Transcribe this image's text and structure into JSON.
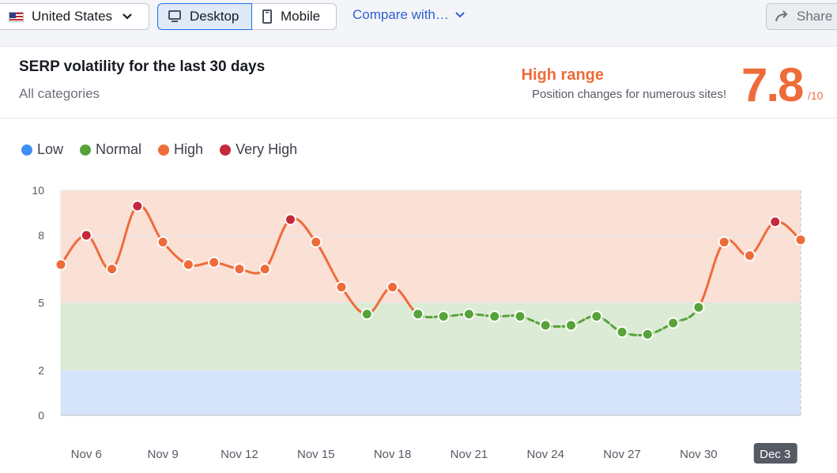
{
  "toolbar": {
    "country": "United States",
    "device_desktop": "Desktop",
    "device_mobile": "Mobile",
    "compare": "Compare with…",
    "share": "Share"
  },
  "card": {
    "title": "SERP volatility for the last 30 days",
    "subtitle": "All categories",
    "range_label": "High range",
    "range_desc": "Position changes for numerous sites!",
    "score": "7.8",
    "score_max": "/10"
  },
  "legend": [
    {
      "label": "Low",
      "color": "#3d8ff5"
    },
    {
      "label": "Normal",
      "color": "#57a33a"
    },
    {
      "label": "High",
      "color": "#ee6c3a"
    },
    {
      "label": "Very High",
      "color": "#c8283c"
    }
  ],
  "chart_data": {
    "type": "line",
    "ylim": [
      0,
      10
    ],
    "y_ticks": [
      0,
      2,
      5,
      8,
      10
    ],
    "bands": [
      {
        "name": "Low",
        "from": 0,
        "to": 2,
        "color": "#d6e4fb"
      },
      {
        "name": "Normal",
        "from": 2,
        "to": 5,
        "color": "#dcebd5"
      },
      {
        "name": "High",
        "from": 5,
        "to": 10,
        "color": "#fbe0d6"
      }
    ],
    "x_ticks": [
      "Nov 6",
      "Nov 9",
      "Nov 12",
      "Nov 15",
      "Nov 18",
      "Nov 21",
      "Nov 24",
      "Nov 27",
      "Nov 30",
      "Dec 3"
    ],
    "x_tick_index": [
      1,
      4,
      7,
      10,
      13,
      16,
      19,
      22,
      25,
      28
    ],
    "highlight_tick": "Dec 3",
    "values": [
      6.7,
      8.0,
      6.5,
      9.3,
      7.7,
      6.7,
      6.8,
      6.5,
      6.5,
      8.7,
      7.7,
      5.7,
      4.5,
      5.7,
      4.5,
      4.4,
      4.5,
      4.4,
      4.4,
      4.0,
      4.0,
      4.4,
      3.7,
      3.6,
      4.1,
      4.8,
      7.7,
      7.1,
      8.6,
      7.8
    ],
    "levels": [
      "high",
      "very-high",
      "high",
      "very-high",
      "high",
      "high",
      "high",
      "high",
      "high",
      "very-high",
      "high",
      "high",
      "normal",
      "high",
      "normal",
      "normal",
      "normal",
      "normal",
      "normal",
      "normal",
      "normal",
      "normal",
      "normal",
      "normal",
      "normal",
      "normal",
      "high",
      "high",
      "very-high",
      "high"
    ]
  }
}
